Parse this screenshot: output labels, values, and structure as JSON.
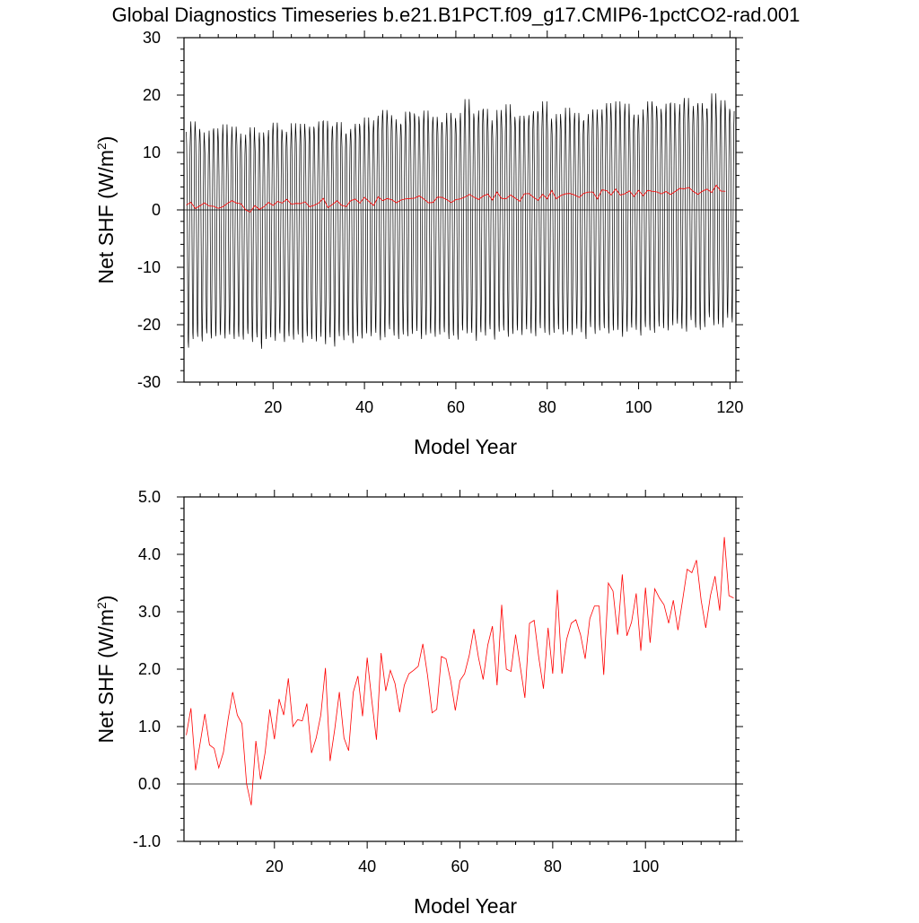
{
  "title": "Global Diagnostics Timeseries b.e21.B1PCT.f09_g17.CMIP6-1pctCO2-rad.001",
  "colors": {
    "monthly": "#000000",
    "annual": "#ff0000",
    "zero_line": "#000000"
  },
  "chart_data": [
    {
      "type": "line",
      "xlabel": "Model Year",
      "ylabel": "Net SHF (W/m",
      "ylabel_sup": "2",
      "ylabel_close": ")",
      "xlim": [
        0.5,
        121.3
      ],
      "ylim": [
        -30,
        30
      ],
      "xticks": [
        20,
        40,
        60,
        80,
        100,
        120
      ],
      "xtick_labels": [
        "20",
        "40",
        "60",
        "80",
        "100",
        "120"
      ],
      "yticks": [
        -30,
        -20,
        -10,
        0,
        10,
        20,
        30
      ],
      "ytick_labels": [
        "-30",
        "-20",
        "-10",
        "0",
        "10",
        "20",
        "30"
      ],
      "reference_line": 0,
      "series": [
        {
          "style": "monthly",
          "monthly_cycle": [
            13.5,
            11.5,
            6.0,
            -4.0,
            -14.0,
            -20.5,
            -21.5,
            -16.0,
            -6.0,
            4.0,
            11.0,
            13.5
          ],
          "annual_max": [
            13.6,
            15.4,
            14.1,
            13.5,
            11.9,
            13.8,
            14.2,
            12.6,
            14.9,
            12.7,
            14.5,
            13.3,
            12.0,
            13.1,
            14.4,
            12.2,
            13.5,
            12.6,
            13.9,
            15.2,
            14.0,
            13.6,
            12.9,
            15.1,
            13.6,
            15.0,
            13.9,
            14.5,
            14.1,
            15.4,
            15.5,
            13.9,
            14.6,
            15.3,
            13.0,
            13.3,
            14.1,
            15.0,
            14.5,
            16.1,
            14.2,
            15.6,
            16.4,
            17.4,
            16.5,
            15.8,
            14.9,
            14.8,
            17.1,
            16.8,
            16.3,
            15.5,
            17.3,
            15.4,
            16.2,
            15.3,
            15.1,
            16.9,
            16.0,
            15.3,
            16.9,
            19.3,
            16.8,
            16.0,
            17.3,
            17.6,
            15.6,
            14.6,
            17.4,
            16.3,
            18.4,
            16.2,
            15.5,
            16.4,
            15.7,
            16.5,
            17.2,
            16.8,
            18.9,
            15.9,
            15.2,
            16.7,
            15.5,
            17.8,
            15.7,
            16.9,
            15.4,
            15.6,
            16.7,
            17.5,
            16.2,
            17.5,
            18.6,
            16.8,
            18.9,
            16.9,
            18.5,
            15.9,
            16.6,
            15.7,
            17.5,
            18.9,
            18.1,
            17.6,
            16.8,
            18.5,
            18.6,
            16.6,
            18.4,
            19.5,
            17.2,
            18.1,
            18.6,
            17.6,
            17.6,
            20.3,
            17.0,
            19.1,
            17.6,
            17.2
          ],
          "annual_min": [
            -24.0,
            -22.5,
            -22.1,
            -22.9,
            -21.5,
            -22.4,
            -22.0,
            -21.8,
            -22.4,
            -21.7,
            -22.5,
            -22.1,
            -22.6,
            -21.6,
            -23.0,
            -22.2,
            -24.2,
            -22.5,
            -22.2,
            -22.8,
            -21.5,
            -23.0,
            -22.0,
            -22.6,
            -21.7,
            -23.1,
            -22.0,
            -22.5,
            -22.9,
            -22.1,
            -23.4,
            -22.2,
            -23.8,
            -22.0,
            -22.7,
            -21.9,
            -23.2,
            -22.0,
            -22.4,
            -21.5,
            -22.0,
            -21.4,
            -22.7,
            -22.2,
            -20.8,
            -21.9,
            -22.5,
            -21.7,
            -22.0,
            -21.6,
            -21.1,
            -22.5,
            -21.8,
            -21.5,
            -22.1,
            -21.7,
            -21.3,
            -22.5,
            -21.9,
            -22.6,
            -21.0,
            -21.5,
            -21.4,
            -22.8,
            -21.3,
            -21.9,
            -20.8,
            -22.6,
            -21.2,
            -21.0,
            -22.1,
            -21.6,
            -21.0,
            -21.8,
            -20.8,
            -21.5,
            -22.0,
            -20.6,
            -21.4,
            -21.8,
            -21.4,
            -20.8,
            -21.7,
            -21.2,
            -21.8,
            -20.7,
            -21.3,
            -22.5,
            -20.4,
            -21.6,
            -21.0,
            -20.6,
            -21.5,
            -21.0,
            -20.9,
            -22.1,
            -21.2,
            -20.5,
            -20.9,
            -21.9,
            -20.4,
            -21.0,
            -21.4,
            -20.3,
            -20.6,
            -21.0,
            -20.1,
            -19.8,
            -20.7,
            -21.2,
            -19.2,
            -20.5,
            -20.9,
            -20.4,
            -18.7,
            -20.1,
            -19.9,
            -20.5,
            -18.8,
            -19.6
          ]
        },
        {
          "style": "annual",
          "x_start": 1,
          "values": [
            0.85,
            1.32,
            0.24,
            0.72,
            1.22,
            0.68,
            0.62,
            0.28,
            0.55,
            1.12,
            1.6,
            1.2,
            1.05,
            0.0,
            -0.37,
            0.75,
            0.08,
            0.55,
            1.3,
            0.78,
            1.48,
            1.2,
            1.84,
            1.0,
            1.12,
            1.1,
            1.4,
            0.54,
            0.8,
            1.2,
            2.02,
            0.4,
            0.95,
            1.6,
            0.8,
            0.58,
            1.6,
            1.88,
            1.18,
            2.2,
            1.45,
            0.77,
            2.28,
            1.62,
            1.98,
            1.75,
            1.25,
            1.72,
            1.92,
            1.98,
            2.05,
            2.44,
            1.9,
            1.24,
            1.3,
            2.22,
            2.18,
            1.8,
            1.28,
            1.8,
            1.92,
            2.24,
            2.7,
            2.2,
            1.82,
            2.42,
            2.75,
            1.72,
            3.12,
            2.0,
            1.96,
            2.6,
            2.05,
            1.5,
            2.8,
            2.85,
            2.2,
            1.66,
            2.72,
            1.92,
            3.38,
            1.92,
            2.52,
            2.8,
            2.86,
            2.6,
            2.18,
            2.88,
            3.1,
            3.1,
            1.9,
            3.5,
            3.36,
            2.6,
            3.65,
            2.58,
            2.82,
            3.32,
            2.32,
            3.42,
            2.46,
            3.4,
            3.24,
            3.12,
            2.8,
            3.2,
            2.68,
            3.2,
            3.74,
            3.68,
            3.9,
            3.2,
            2.72,
            3.28,
            3.62,
            3.02,
            4.3,
            3.28,
            3.24
          ]
        }
      ]
    },
    {
      "type": "line",
      "xlabel": "Model Year",
      "ylabel": "Net SHF (W/m",
      "ylabel_sup": "2",
      "ylabel_close": ")",
      "xlim": [
        0.5,
        119.5
      ],
      "ylim": [
        -1.0,
        5.0
      ],
      "xticks": [
        20,
        40,
        60,
        80,
        100
      ],
      "xtick_labels": [
        "20",
        "40",
        "60",
        "80",
        "100"
      ],
      "yticks": [
        -1.0,
        0.0,
        1.0,
        2.0,
        3.0,
        4.0,
        5.0
      ],
      "ytick_labels": [
        "-1.0",
        "0.0",
        "1.0",
        "2.0",
        "3.0",
        "4.0",
        "5.0"
      ],
      "reference_line": 0,
      "series": [
        {
          "style": "annual",
          "x_start": 1,
          "values": [
            0.85,
            1.32,
            0.24,
            0.72,
            1.22,
            0.68,
            0.62,
            0.28,
            0.55,
            1.12,
            1.6,
            1.2,
            1.05,
            0.0,
            -0.37,
            0.75,
            0.08,
            0.55,
            1.3,
            0.78,
            1.48,
            1.2,
            1.84,
            1.0,
            1.12,
            1.1,
            1.4,
            0.54,
            0.8,
            1.2,
            2.02,
            0.4,
            0.95,
            1.6,
            0.8,
            0.58,
            1.6,
            1.88,
            1.18,
            2.2,
            1.45,
            0.77,
            2.28,
            1.62,
            1.98,
            1.75,
            1.25,
            1.72,
            1.92,
            1.98,
            2.05,
            2.44,
            1.9,
            1.24,
            1.3,
            2.22,
            2.18,
            1.8,
            1.28,
            1.8,
            1.92,
            2.24,
            2.7,
            2.2,
            1.82,
            2.42,
            2.75,
            1.72,
            3.12,
            2.0,
            1.96,
            2.6,
            2.05,
            1.5,
            2.8,
            2.85,
            2.2,
            1.66,
            2.72,
            1.92,
            3.38,
            1.92,
            2.52,
            2.8,
            2.86,
            2.6,
            2.18,
            2.88,
            3.1,
            3.1,
            1.9,
            3.5,
            3.36,
            2.6,
            3.65,
            2.58,
            2.82,
            3.32,
            2.32,
            3.42,
            2.46,
            3.4,
            3.24,
            3.12,
            2.8,
            3.2,
            2.68,
            3.2,
            3.74,
            3.68,
            3.9,
            3.2,
            2.72,
            3.28,
            3.62,
            3.02,
            4.3,
            3.28,
            3.24
          ]
        }
      ]
    }
  ]
}
